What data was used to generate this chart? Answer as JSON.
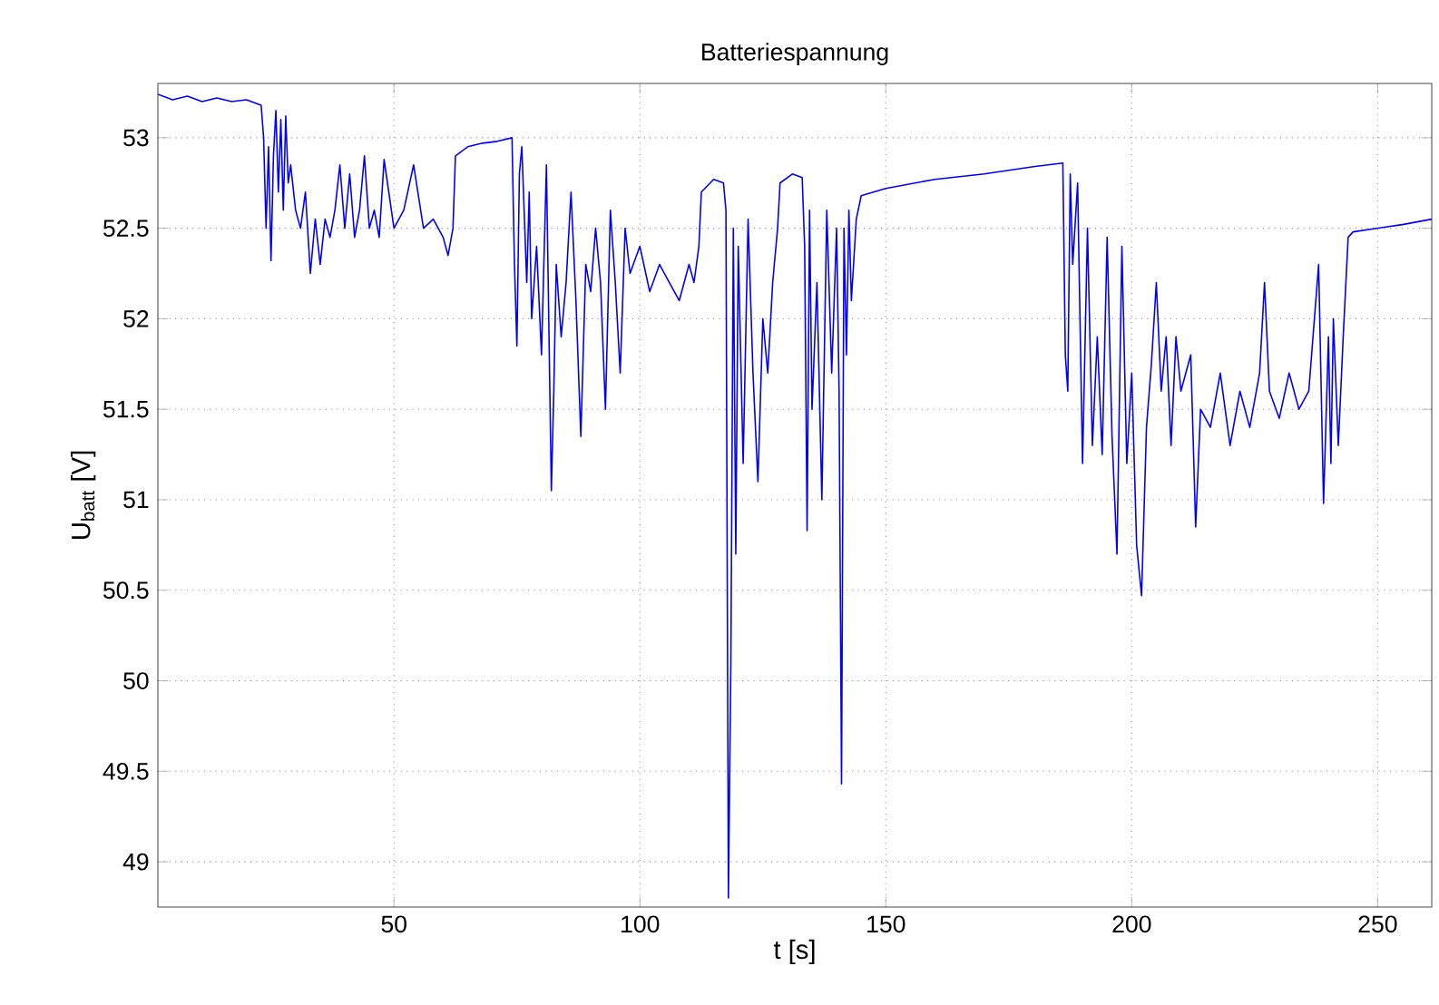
{
  "chart_data": {
    "type": "line",
    "title": "Batteriespannung",
    "xlabel": "t [s]",
    "ylabel": "U$_{batt}$ [V]",
    "xlim": [
      2,
      261
    ],
    "ylim": [
      48.75,
      53.3
    ],
    "xticks": [
      50,
      100,
      150,
      200,
      250
    ],
    "yticks": [
      49,
      49.5,
      50,
      50.5,
      51,
      51.5,
      52,
      52.5,
      53
    ],
    "grid": true,
    "series": [
      {
        "color": "#0000ff",
        "x": [
          2,
          5,
          8,
          11,
          14,
          17,
          20,
          23,
          23.5,
          24,
          24.5,
          25,
          25.5,
          26,
          26.5,
          27,
          27.5,
          28,
          28.5,
          29,
          30,
          31,
          32,
          33,
          34,
          35,
          36,
          37,
          38,
          39,
          40,
          41,
          42,
          43,
          44,
          45,
          46,
          47,
          48,
          50,
          52,
          54,
          56,
          58,
          60,
          61,
          62,
          62.5,
          65,
          68,
          71,
          74,
          74.5,
          75,
          75.5,
          76,
          77,
          77.5,
          78,
          79,
          80,
          81,
          82,
          82.5,
          83,
          84,
          85,
          86,
          87,
          88,
          89,
          90,
          91,
          92,
          93,
          94,
          95,
          96,
          97,
          98,
          100,
          102,
          104,
          106,
          108,
          110,
          111,
          112,
          112.5,
          115,
          117,
          117.5,
          118,
          118.5,
          119,
          119.5,
          120,
          121,
          122,
          123,
          124,
          125,
          126,
          127,
          128,
          128.5,
          131,
          133,
          133.5,
          134,
          134.5,
          135,
          136,
          137,
          138,
          139,
          140,
          140.5,
          141,
          141.5,
          142,
          142.5,
          143,
          144,
          145,
          150,
          160,
          170,
          180,
          186,
          186.5,
          187,
          187.5,
          188,
          189,
          190,
          191,
          192,
          193,
          194,
          195,
          196,
          197,
          198,
          199,
          200,
          201,
          202,
          203,
          204,
          205,
          206,
          207,
          208,
          209,
          210,
          212,
          213,
          214,
          216,
          218,
          220,
          222,
          224,
          226,
          227,
          228,
          230,
          232,
          234,
          236,
          238,
          239,
          240,
          240.5,
          241,
          242,
          243,
          244,
          245,
          250,
          255,
          261
        ],
        "values": [
          53.24,
          53.21,
          53.23,
          53.2,
          53.22,
          53.2,
          53.21,
          53.18,
          53.0,
          52.5,
          52.95,
          52.32,
          52.9,
          53.15,
          52.7,
          53.1,
          52.6,
          53.12,
          52.75,
          52.85,
          52.6,
          52.5,
          52.7,
          52.25,
          52.55,
          52.3,
          52.55,
          52.45,
          52.6,
          52.85,
          52.5,
          52.8,
          52.45,
          52.6,
          52.9,
          52.5,
          52.6,
          52.45,
          52.88,
          52.5,
          52.6,
          52.85,
          52.5,
          52.55,
          52.45,
          52.35,
          52.5,
          52.9,
          52.95,
          52.97,
          52.98,
          53.0,
          52.3,
          51.85,
          52.8,
          52.95,
          52.2,
          52.7,
          52.0,
          52.4,
          51.8,
          52.85,
          51.05,
          51.6,
          52.3,
          51.9,
          52.2,
          52.7,
          52.1,
          51.35,
          52.3,
          52.15,
          52.5,
          52.2,
          51.5,
          52.6,
          52.2,
          51.7,
          52.5,
          52.25,
          52.4,
          52.15,
          52.3,
          52.2,
          52.1,
          52.3,
          52.2,
          52.4,
          52.7,
          52.77,
          52.75,
          52.6,
          48.8,
          50.1,
          52.5,
          50.7,
          52.4,
          51.2,
          52.55,
          51.7,
          51.1,
          52.0,
          51.7,
          52.2,
          52.5,
          52.75,
          52.8,
          52.78,
          52.4,
          50.83,
          52.6,
          51.5,
          52.2,
          51.0,
          52.6,
          51.7,
          52.5,
          51.6,
          49.43,
          52.5,
          51.8,
          52.6,
          52.1,
          52.55,
          52.68,
          52.72,
          52.77,
          52.8,
          52.84,
          52.86,
          51.8,
          51.6,
          52.8,
          52.3,
          52.75,
          51.2,
          52.5,
          51.3,
          51.9,
          51.25,
          52.45,
          51.35,
          50.7,
          52.4,
          51.2,
          51.7,
          50.75,
          50.47,
          51.4,
          51.75,
          52.2,
          51.6,
          51.9,
          51.3,
          51.9,
          51.6,
          51.8,
          50.85,
          51.5,
          51.4,
          51.7,
          51.3,
          51.6,
          51.4,
          51.7,
          52.2,
          51.6,
          51.45,
          51.7,
          51.5,
          51.6,
          52.3,
          50.98,
          51.9,
          51.2,
          52.0,
          51.3,
          51.9,
          52.45,
          52.48,
          52.5,
          52.52,
          52.55
        ]
      }
    ]
  }
}
